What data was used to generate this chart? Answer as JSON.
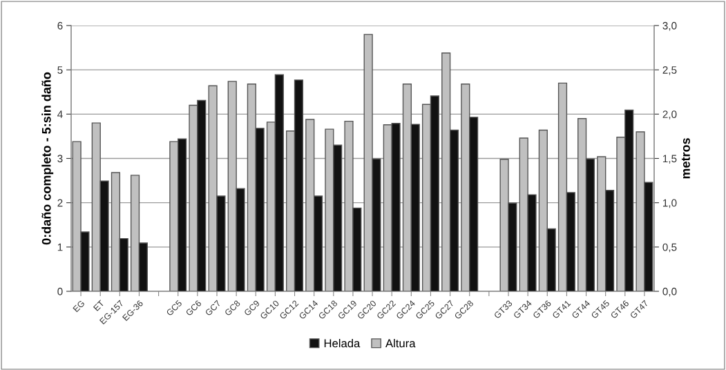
{
  "chart_data": {
    "type": "bar",
    "ylabel": "0:daño completo - 5:sin daño",
    "y2label": "metros",
    "categories": [
      "EG",
      "ET",
      "EG-157",
      "EG-36",
      null,
      "GC5",
      "GC6",
      "GC7",
      "GC8",
      "GC9",
      "GC10",
      "GC12",
      "GC14",
      "GC18",
      "GC19",
      "GC20",
      "GC22",
      "GC24",
      "GC25",
      "GC27",
      "GC28",
      null,
      "GT33",
      "GT34",
      "GT36",
      "GT41",
      "GT44",
      "GT45",
      "GT46",
      "GT47"
    ],
    "series": [
      {
        "name": "Helada",
        "color": "#111111",
        "values": [
          1.34,
          2.49,
          1.19,
          1.09,
          null,
          3.44,
          4.31,
          2.15,
          2.32,
          3.68,
          4.89,
          4.77,
          2.15,
          3.3,
          1.88,
          2.99,
          3.79,
          3.77,
          4.41,
          3.64,
          3.93,
          null,
          1.99,
          2.18,
          1.41,
          2.23,
          2.99,
          2.28,
          4.09,
          2.46
        ]
      },
      {
        "name": "Altura",
        "color": "#c0c0c0",
        "axis": "y2",
        "values": [
          1.69,
          1.9,
          1.34,
          1.31,
          null,
          1.69,
          2.1,
          2.32,
          2.37,
          2.34,
          1.91,
          1.81,
          1.94,
          1.83,
          1.92,
          2.9,
          1.88,
          2.34,
          2.11,
          2.69,
          2.34,
          null,
          1.49,
          1.73,
          1.82,
          2.35,
          1.95,
          1.52,
          1.74,
          1.8
        ]
      }
    ],
    "ylim": [
      0,
      6
    ],
    "yticks": [
      0,
      1,
      2,
      3,
      4,
      5,
      6
    ],
    "y2lim": [
      0,
      3
    ],
    "y2ticks": [
      {
        "value": 0,
        "label": "0,0"
      },
      {
        "value": 0.5,
        "label": "0,5"
      },
      {
        "value": 1,
        "label": "1,0"
      },
      {
        "value": 1.5,
        "label": "1,5"
      },
      {
        "value": 2,
        "label": "2,0"
      },
      {
        "value": 2.5,
        "label": "2,5"
      },
      {
        "value": 3,
        "label": "3,0"
      }
    ],
    "grid": "y",
    "legend": "bottom"
  }
}
